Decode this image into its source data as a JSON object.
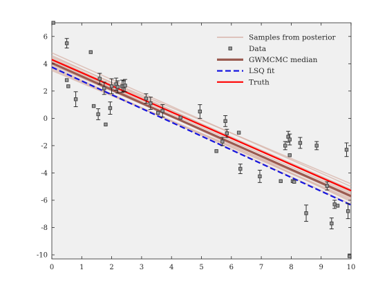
{
  "chart_data": {
    "type": "scatter",
    "title": "",
    "xlabel": "",
    "ylabel": "",
    "xlim": [
      0,
      10
    ],
    "ylim": [
      -10.3,
      7.0
    ],
    "x_ticks": [
      "0",
      "1",
      "2",
      "3",
      "4",
      "5",
      "6",
      "7",
      "8",
      "9",
      "10"
    ],
    "y_ticks": [
      "6",
      "4",
      "2",
      "0",
      "-2",
      "-4",
      "-6",
      "-8",
      "-10"
    ],
    "grid": false,
    "background_color": "#f0f0f0",
    "legend_position": "top-right",
    "legend": [
      {
        "label": "Samples from posterior",
        "style": "line",
        "color": "#d8b4aa"
      },
      {
        "label": "Data",
        "style": "marker",
        "color": "#444444"
      },
      {
        "label": "GWMCMC median",
        "style": "line",
        "color": "#9a5a50"
      },
      {
        "label": "LSQ fit",
        "style": "dashed",
        "color": "#1515e0"
      },
      {
        "label": "Truth",
        "style": "line",
        "color": "#ff0000"
      }
    ],
    "data_points": {
      "x": [
        0.05,
        0.5,
        0.5,
        0.55,
        0.8,
        1.3,
        1.4,
        1.55,
        1.6,
        1.75,
        1.8,
        1.95,
        2.0,
        2.15,
        2.2,
        2.35,
        2.4,
        2.45,
        3.15,
        3.3,
        3.55,
        3.7,
        4.3,
        4.95,
        5.5,
        5.7,
        5.8,
        5.85,
        6.25,
        6.3,
        6.95,
        7.65,
        7.8,
        7.9,
        7.95,
        7.95,
        8.05,
        8.1,
        8.3,
        8.5,
        8.85,
        9.2,
        9.35,
        9.45,
        9.55,
        9.85,
        9.9,
        9.95,
        9.95
      ],
      "y": [
        7.0,
        5.5,
        2.8,
        2.35,
        1.4,
        4.85,
        0.9,
        0.3,
        2.9,
        2.2,
        -0.45,
        0.75,
        2.35,
        2.5,
        2.3,
        2.35,
        2.35,
        2.4,
        1.45,
        1.1,
        0.4,
        0.55,
        0.05,
        0.5,
        -2.4,
        -1.7,
        -0.2,
        -1.1,
        -1.05,
        -3.7,
        -4.25,
        -4.6,
        -2.0,
        -1.35,
        -1.55,
        -2.7,
        -4.6,
        -4.65,
        -1.8,
        -6.95,
        -2.0,
        -4.95,
        -7.7,
        -6.3,
        -6.4,
        -2.3,
        -6.8,
        -10.05,
        -10.1
      ],
      "error": [
        0.0,
        0.35,
        0.0,
        0.0,
        0.55,
        0.0,
        0.0,
        0.4,
        0.4,
        0.45,
        0.0,
        0.45,
        0.55,
        0.45,
        0.45,
        0.45,
        0.4,
        0.45,
        0.35,
        0.45,
        0.0,
        0.45,
        0.0,
        0.5,
        0.0,
        0.3,
        0.4,
        0.3,
        0.0,
        0.35,
        0.45,
        0.0,
        0.3,
        0.4,
        0.4,
        0.0,
        0.0,
        0.0,
        0.4,
        0.6,
        0.3,
        0.3,
        0.4,
        0.3,
        0.0,
        0.5,
        0.55,
        0.0,
        0.0
      ]
    },
    "series": [
      {
        "name": "GWMCMC median",
        "x": [
          0,
          10
        ],
        "y": [
          4.05,
          -5.7
        ]
      },
      {
        "name": "LSQ fit",
        "x": [
          0,
          10
        ],
        "y": [
          3.75,
          -6.35
        ]
      },
      {
        "name": "Truth",
        "x": [
          0,
          10
        ],
        "y": [
          4.3,
          -5.3
        ]
      }
    ],
    "posterior_samples": [
      {
        "x": [
          0,
          10
        ],
        "y": [
          4.8,
          -5.0
        ]
      },
      {
        "x": [
          0,
          10
        ],
        "y": [
          4.5,
          -4.8
        ]
      },
      {
        "x": [
          0,
          10
        ],
        "y": [
          4.4,
          -5.2
        ]
      },
      {
        "x": [
          0,
          10
        ],
        "y": [
          4.2,
          -5.5
        ]
      },
      {
        "x": [
          0,
          10
        ],
        "y": [
          4.1,
          -5.8
        ]
      },
      {
        "x": [
          0,
          10
        ],
        "y": [
          3.9,
          -5.6
        ]
      },
      {
        "x": [
          0,
          10
        ],
        "y": [
          3.7,
          -6.0
        ]
      },
      {
        "x": [
          0,
          10
        ],
        "y": [
          3.6,
          -5.9
        ]
      },
      {
        "x": [
          0,
          10
        ],
        "y": [
          3.8,
          -6.3
        ]
      },
      {
        "x": [
          0,
          10
        ],
        "y": [
          4.3,
          -6.1
        ]
      },
      {
        "x": [
          0,
          10
        ],
        "y": [
          4.6,
          -5.4
        ]
      },
      {
        "x": [
          0,
          10
        ],
        "y": [
          3.5,
          -5.7
        ]
      }
    ]
  }
}
